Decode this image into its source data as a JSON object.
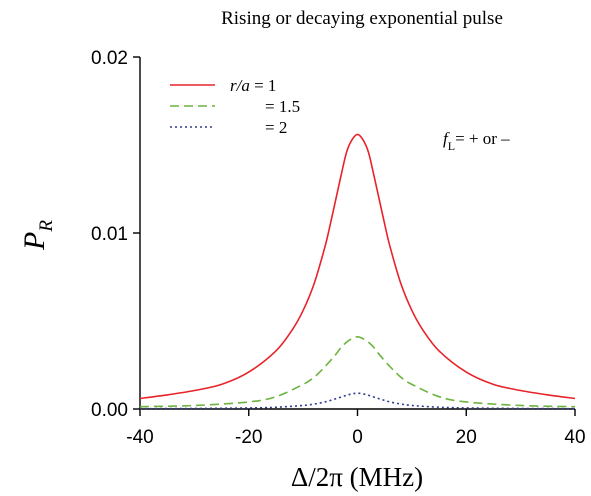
{
  "chart_data": {
    "type": "line",
    "title": "Rising or decaying exponential pulse",
    "xlabel": "Δ/2π (MHz)",
    "ylabel": {
      "main": "P",
      "sub": "R"
    },
    "xlim": [
      -40,
      40
    ],
    "ylim": [
      0,
      0.02
    ],
    "x_ticks": [
      "-40",
      "-20",
      "0",
      "20",
      "40"
    ],
    "x_tick_values": [
      -40,
      -20,
      0,
      20,
      40
    ],
    "y_ticks": [
      "0.00",
      "0.01",
      "0.02"
    ],
    "y_tick_values": [
      0,
      0.01,
      0.02
    ],
    "grid": false,
    "legend_placement": "top-left",
    "legend_header": {
      "italic": "r/a",
      "rest": " = 1"
    },
    "annotation": {
      "main": "f",
      "sub": "L",
      "rest": "= + or –"
    },
    "series": [
      {
        "name": "r/a = 1",
        "legend_label": " = 1",
        "color": "#e8232a",
        "dash": "solid",
        "x": [
          -40,
          -35,
          -30,
          -25,
          -20,
          -15,
          -12,
          -10,
          -8,
          -6,
          -5,
          -4,
          -3,
          -2,
          -1,
          0,
          1,
          2,
          3,
          4,
          5,
          6,
          8,
          10,
          12,
          15,
          20,
          25,
          30,
          35,
          40
        ],
        "y": [
          0.0006,
          0.0008,
          0.00105,
          0.0014,
          0.0021,
          0.0033,
          0.0045,
          0.0056,
          0.0071,
          0.0092,
          0.0105,
          0.0119,
          0.0133,
          0.0146,
          0.0153,
          0.0156,
          0.0153,
          0.0146,
          0.0133,
          0.0119,
          0.0105,
          0.0092,
          0.0071,
          0.0056,
          0.0045,
          0.0033,
          0.0021,
          0.0014,
          0.00105,
          0.0008,
          0.0006
        ]
      },
      {
        "name": "r/a = 1.5",
        "legend_label": "= 1.5",
        "color": "#6db33f",
        "dash": "dashed",
        "x": [
          -40,
          -30,
          -20,
          -15,
          -10,
          -8,
          -6,
          -4,
          -3,
          -2,
          -1,
          0,
          1,
          2,
          3,
          4,
          6,
          8,
          10,
          15,
          20,
          30,
          40
        ],
        "y": [
          0.00013,
          0.0002,
          0.0004,
          0.0007,
          0.0014,
          0.0018,
          0.0024,
          0.0031,
          0.0035,
          0.0038,
          0.004,
          0.0041,
          0.004,
          0.0038,
          0.0035,
          0.0031,
          0.0024,
          0.0018,
          0.0014,
          0.0007,
          0.0004,
          0.0002,
          0.00013
        ]
      },
      {
        "name": "r/a = 2",
        "legend_label": "= 2",
        "color": "#2d3a8c",
        "dash": "dotted",
        "x": [
          -40,
          -30,
          -20,
          -15,
          -10,
          -8,
          -6,
          -4,
          -2,
          -1,
          0,
          1,
          2,
          4,
          6,
          8,
          10,
          15,
          20,
          30,
          40
        ],
        "y": [
          2e-05,
          3e-05,
          6e-05,
          0.0001,
          0.0002,
          0.00028,
          0.0004,
          0.00058,
          0.00078,
          0.00086,
          0.0009,
          0.00086,
          0.00078,
          0.00058,
          0.0004,
          0.00028,
          0.0002,
          0.0001,
          6e-05,
          3e-05,
          2e-05
        ]
      }
    ]
  }
}
